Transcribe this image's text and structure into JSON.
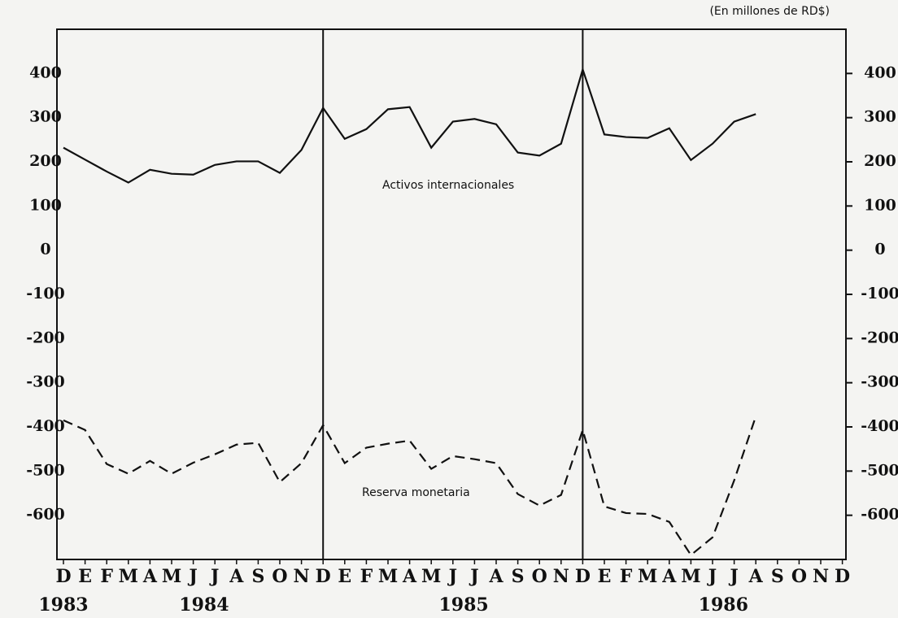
{
  "chart_data": {
    "type": "line",
    "title": "(En millones de RD$)",
    "categories": [
      "D",
      "E",
      "F",
      "M",
      "A",
      "M",
      "J",
      "J",
      "A",
      "S",
      "O",
      "N",
      "D",
      "E",
      "F",
      "M",
      "A",
      "M",
      "J",
      "J",
      "A",
      "S",
      "O",
      "N",
      "D",
      "E",
      "F",
      "M",
      "A",
      "M",
      "J",
      "J",
      "A",
      "S",
      "O",
      "N",
      "D"
    ],
    "years": [
      "1983",
      "1984",
      "1985",
      "1986"
    ],
    "series": [
      {
        "name": "Activos internacionales",
        "color": "#111111",
        "style": "solid",
        "values": [
          232,
          205,
          178,
          153,
          182,
          173,
          171,
          193,
          201,
          201,
          175,
          227,
          322,
          252,
          274,
          319,
          324,
          232,
          291,
          297,
          285,
          221,
          214,
          241,
          409,
          262,
          256,
          254,
          276,
          204,
          241,
          291,
          308,
          null,
          null,
          null,
          null
        ]
      },
      {
        "name": "Reserva monetaria",
        "color": "#111111",
        "style": "dashed",
        "values": [
          -385,
          -407,
          -484,
          -506,
          -477,
          -506,
          -481,
          -462,
          -440,
          -436,
          -525,
          -482,
          -396,
          -482,
          -447,
          -438,
          -431,
          -495,
          -466,
          -473,
          -482,
          -552,
          -578,
          -554,
          -407,
          -580,
          -595,
          -597,
          -615,
          -690,
          -650,
          -521,
          -376,
          null,
          null,
          null,
          null
        ]
      }
    ],
    "ylim": [
      -700,
      500
    ],
    "yticks": [
      400,
      300,
      200,
      100,
      0,
      -100,
      -200,
      -300,
      -400,
      -500,
      -600
    ],
    "grid": false
  }
}
